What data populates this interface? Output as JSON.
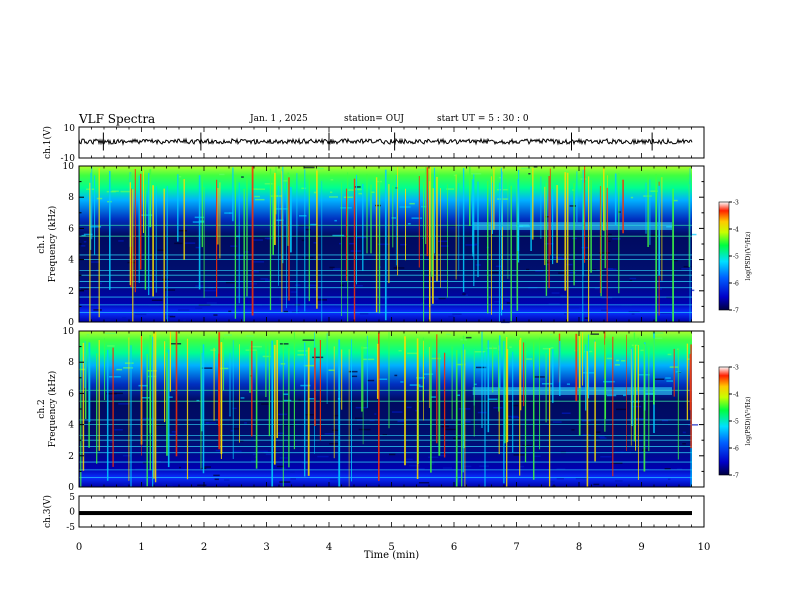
{
  "header": {
    "title": "VLF Spectra",
    "date": "Jan. 1 , 2025",
    "station": "station= OUJ",
    "start": "start UT =  5 : 30 : 0"
  },
  "chart_data": [
    {
      "type": "line",
      "name": "ch1-waveform",
      "ylabel": "ch.1(V)",
      "ylim": [
        -10,
        10
      ],
      "y_ticks": [
        "10",
        "-10"
      ],
      "xlim": [
        0,
        10
      ],
      "signal_level": 0,
      "noise_amplitude": 1.5
    },
    {
      "type": "heatmap",
      "name": "ch1-spectrogram",
      "ylabel": "Frequency (kHz)",
      "channel_label": "ch.1",
      "ylim": [
        0,
        10
      ],
      "y_ticks": [
        "0",
        "2",
        "4",
        "6",
        "8",
        "10"
      ],
      "xlim": [
        0,
        9.85
      ],
      "colorbar": {
        "label": "log(PSD)(V²/Hz)",
        "range": [
          -7,
          -3
        ],
        "ticks": [
          "-3",
          "-4",
          "-5",
          "-6",
          "-7"
        ]
      }
    },
    {
      "type": "heatmap",
      "name": "ch2-spectrogram",
      "ylabel": "Frequency (kHz)",
      "channel_label": "ch.2",
      "ylim": [
        0,
        10
      ],
      "y_ticks": [
        "0",
        "2",
        "4",
        "6",
        "8",
        "10"
      ],
      "xlim": [
        0,
        9.85
      ],
      "colorbar": {
        "label": "log(PSD)(V²/Hz)",
        "range": [
          -7,
          -3
        ],
        "ticks": [
          "-3",
          "-4",
          "-5",
          "-6",
          "-7"
        ]
      }
    },
    {
      "type": "line",
      "name": "ch3-waveform",
      "ylabel": "ch.3(V)",
      "ylim": [
        -5,
        5
      ],
      "y_ticks": [
        "5",
        "0",
        "-5"
      ],
      "xlim": [
        0,
        10
      ],
      "signal_level": -0.5
    }
  ],
  "x_axis": {
    "label": "Time (min)",
    "ticks": [
      "0",
      "1",
      "2",
      "3",
      "4",
      "5",
      "6",
      "7",
      "8",
      "9",
      "10"
    ]
  },
  "colors": {
    "colormap": [
      "#000050",
      "#0000ff",
      "#00ffff",
      "#00ff00",
      "#ffff00",
      "#ff0000",
      "#ffffff"
    ],
    "axes": "#000000"
  }
}
